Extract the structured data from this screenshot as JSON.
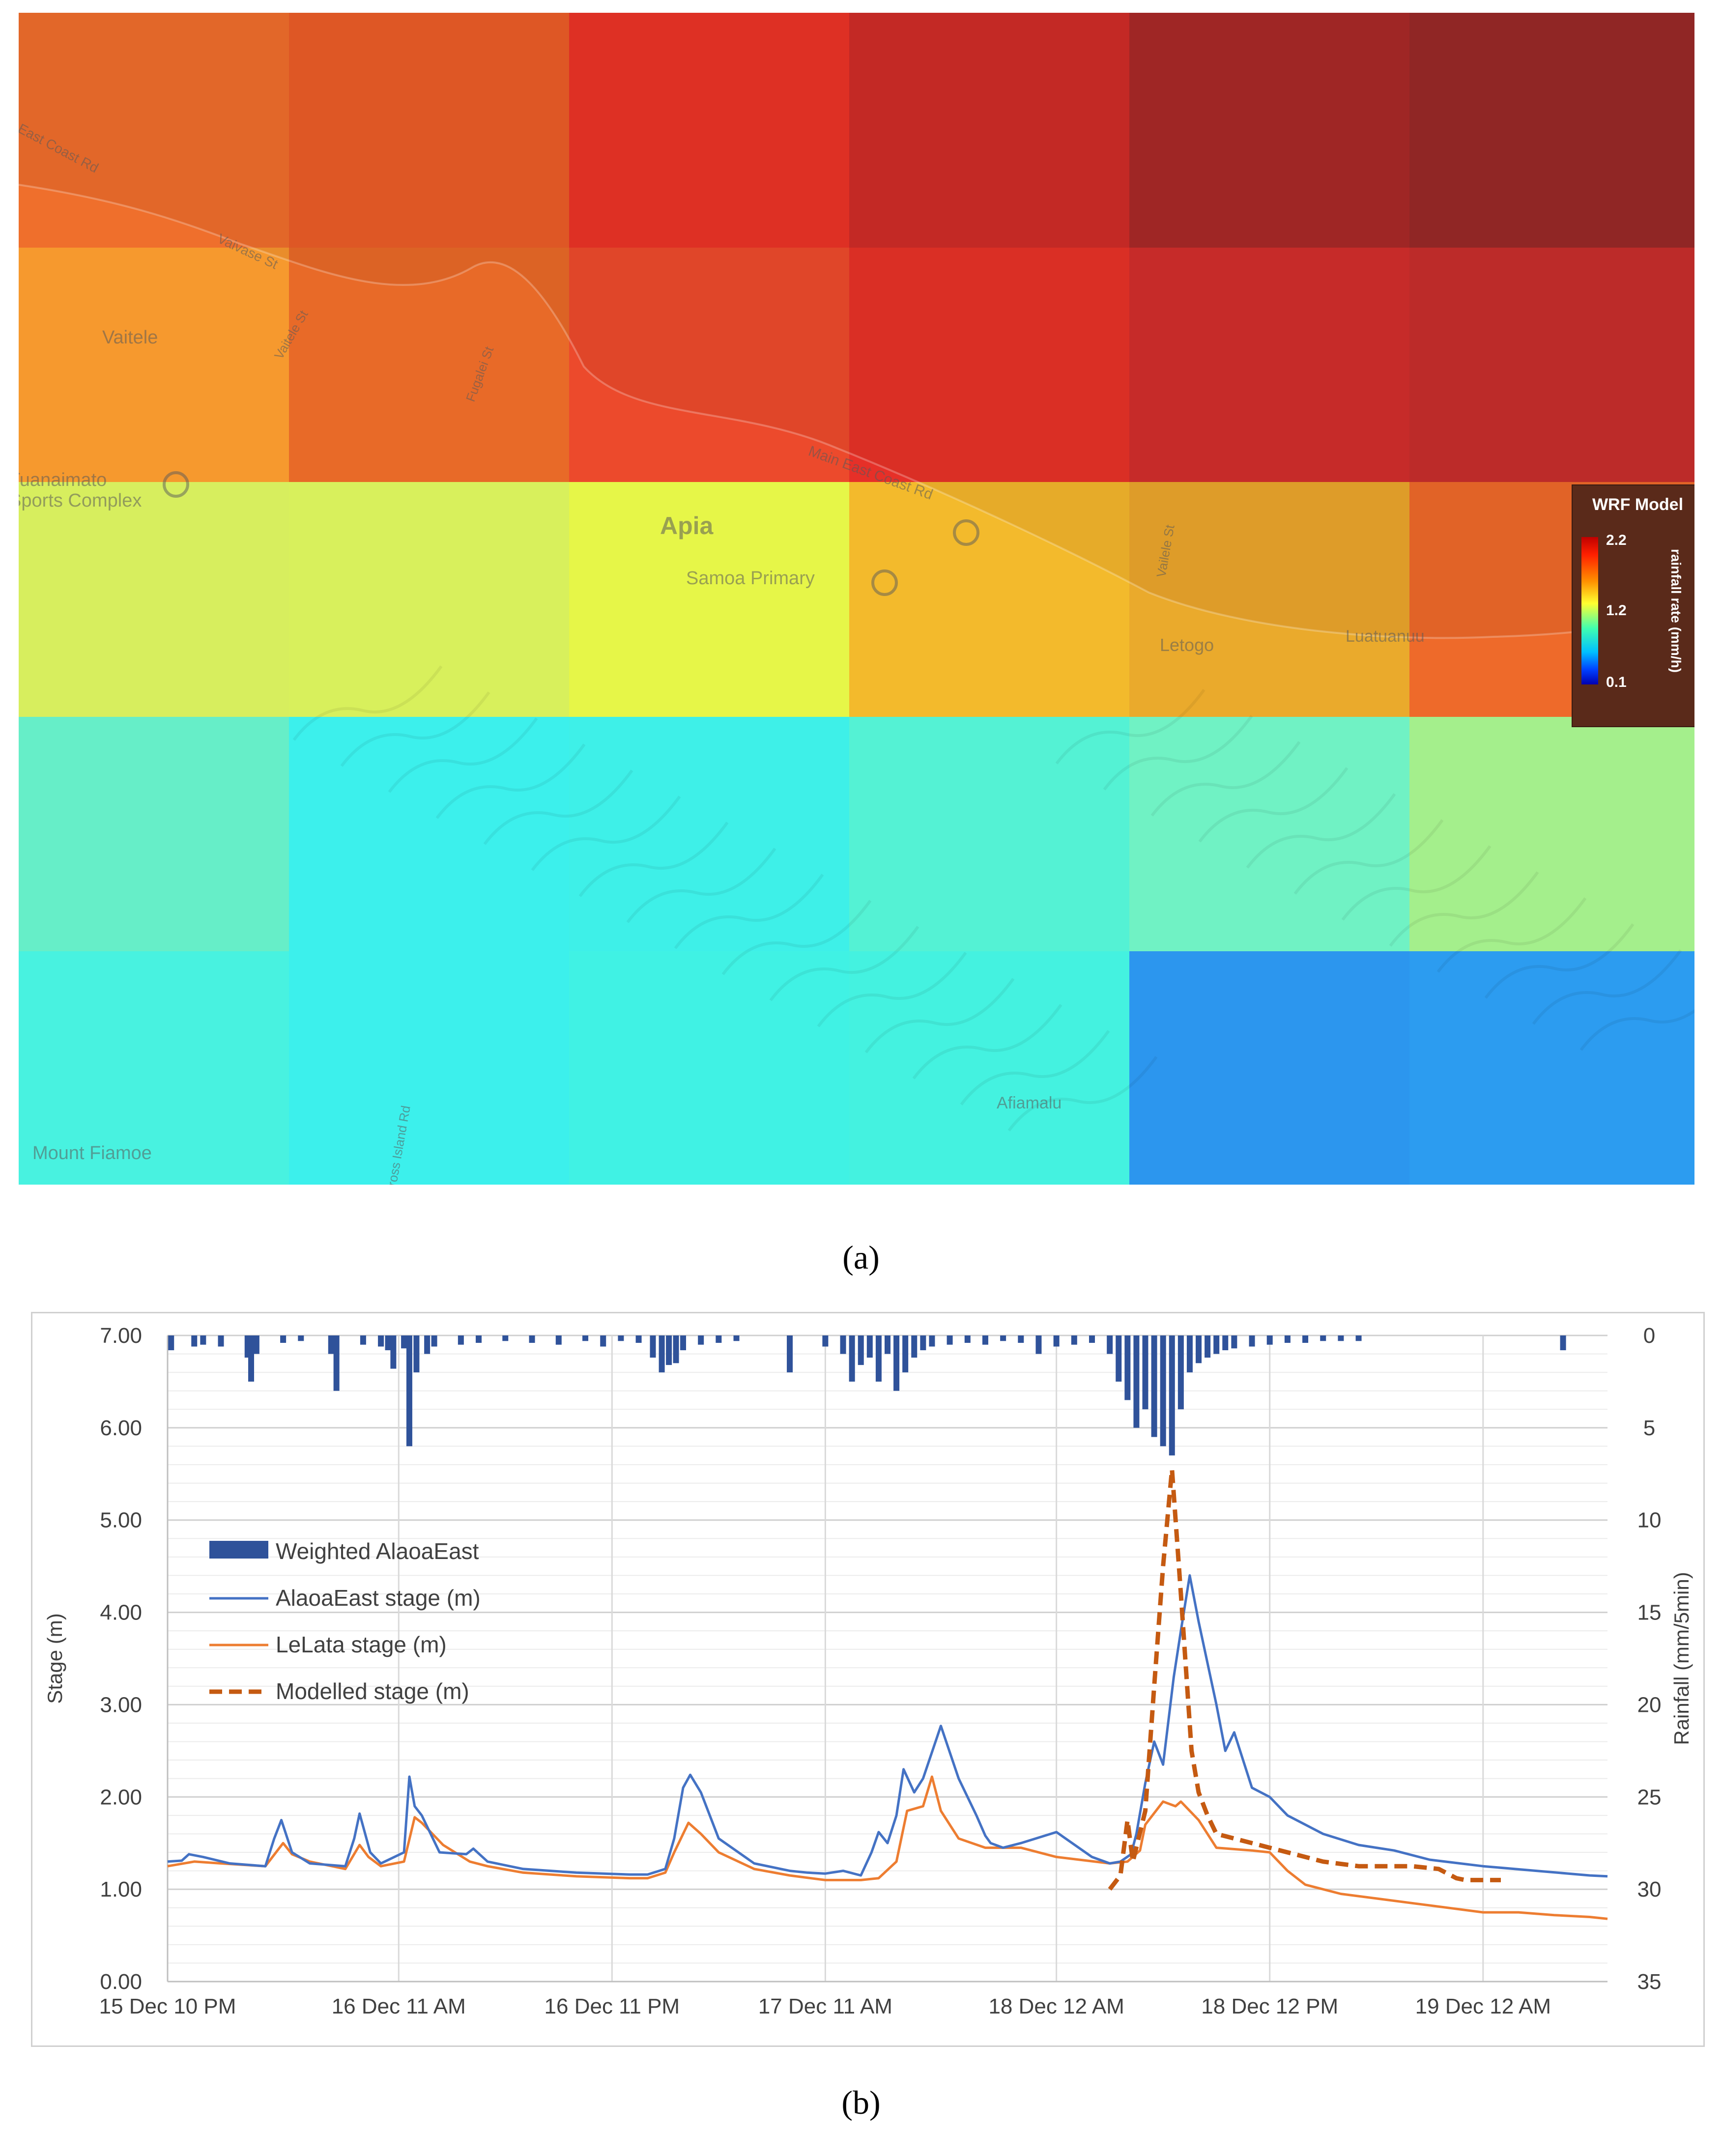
{
  "panel_a": {
    "caption": "(a)",
    "place_labels": [
      "Vaitele",
      "Apia",
      "Samoa Primary",
      "Letogo",
      "Luatuanuu",
      "Afiamalu",
      "Mount Fiamoe",
      "Main East Coast Rd",
      "Vaivase St",
      "Fugalei St",
      "Vailele St",
      "Vaitele St",
      "Cross Island Rd",
      "Tuanaimato Sports Complex",
      "East Coast Rd"
    ],
    "legend": {
      "title": "WRF Model",
      "unit": "rainfall rate (mm/h)",
      "max": "2.2",
      "mid": "1.2",
      "min": "0.1"
    },
    "grid_colors": [
      [
        "#ef6f2c",
        "#ea5d28",
        "#ea3226",
        "#cc2a28",
        "#a42628",
        "#942628"
      ],
      [
        "#f6992e",
        "#e86a28",
        "#ec4a2c",
        "#e63028",
        "#d02c2c",
        "#c42c2c"
      ],
      [
        "#d7ee5e",
        "#d8f05c",
        "#e6f648",
        "#f3ba2c",
        "#eaaa2c",
        "#ee6a2a"
      ],
      [
        "#66eec8",
        "#3cf0ec",
        "#3ef0e8",
        "#54f2d4",
        "#70f2c4",
        "#a4ef8c"
      ],
      [
        "#48f2e0",
        "#3cf0ec",
        "#40f2e4",
        "#44f2e0",
        "#2c96ee",
        "#2c9cf0"
      ]
    ]
  },
  "panel_b": {
    "caption": "(b)",
    "legend": [
      "Weighted AlaoaEast",
      "AlaoaEast stage (m)",
      "LeLata stage (m)",
      "Modelled stage (m)"
    ]
  },
  "colors": {
    "rain": "#2f529a",
    "alaoa": "#4472c4",
    "lelata": "#ed7d31",
    "modelled": "#c55a11",
    "grid": "#d9d9d9"
  },
  "chart_data": {
    "type": "line",
    "title": "",
    "xlabel": "",
    "ylabel": "Stage (m)",
    "y2label": "Rainfall (mm/5min)",
    "ylim": [
      0,
      7
    ],
    "y2lim": [
      35,
      0
    ],
    "y2_inverted": true,
    "xlim": [
      0,
      81
    ],
    "x_unit": "hours after 15 Dec 10 PM",
    "xticks": [
      {
        "x": 0,
        "label": "15 Dec 10 PM"
      },
      {
        "x": 13,
        "label": "16 Dec 11 AM"
      },
      {
        "x": 25,
        "label": "16 Dec 11 PM"
      },
      {
        "x": 37,
        "label": "17 Dec 11 AM"
      },
      {
        "x": 50,
        "label": "18 Dec 12 AM"
      },
      {
        "x": 62,
        "label": "18 Dec 12 PM"
      },
      {
        "x": 74,
        "label": "19 Dec 12 AM"
      }
    ],
    "yticks": [
      "0.00",
      "1.00",
      "2.00",
      "3.00",
      "4.00",
      "5.00",
      "6.00",
      "7.00"
    ],
    "y2ticks": [
      "0",
      "5",
      "10",
      "15",
      "20",
      "25",
      "30",
      "35"
    ],
    "legend_position": "upper-left",
    "grid": true,
    "series": [
      {
        "name": "AlaoaEast stage (m)",
        "axis": "left",
        "x": [
          0,
          0.8,
          1.2,
          2,
          3.5,
          5.5,
          6,
          6.4,
          7,
          8,
          10,
          10.5,
          10.8,
          11.4,
          12,
          13.3,
          13.6,
          13.9,
          14.3,
          15.3,
          16.8,
          17.2,
          18,
          20,
          23,
          26,
          27,
          28,
          28.5,
          29,
          29.4,
          30,
          31,
          33,
          35,
          36,
          37,
          38,
          39,
          39.6,
          40,
          40.5,
          41,
          41.4,
          42,
          42.5,
          43.5,
          44.5,
          45.5,
          46,
          46.3,
          47,
          48,
          50,
          52,
          53,
          53.6,
          54.2,
          54.5,
          55,
          55.5,
          56,
          56.6,
          57,
          57.5,
          58,
          59,
          59.5,
          60,
          61,
          62,
          63,
          65,
          67,
          69,
          71,
          74,
          77,
          80,
          81
        ],
        "y": [
          1.3,
          1.31,
          1.38,
          1.35,
          1.28,
          1.25,
          1.55,
          1.75,
          1.4,
          1.28,
          1.25,
          1.55,
          1.82,
          1.4,
          1.28,
          1.4,
          2.22,
          1.9,
          1.8,
          1.4,
          1.38,
          1.44,
          1.3,
          1.22,
          1.18,
          1.16,
          1.16,
          1.22,
          1.55,
          2.1,
          2.24,
          2.05,
          1.55,
          1.28,
          1.2,
          1.18,
          1.17,
          1.2,
          1.15,
          1.4,
          1.62,
          1.5,
          1.8,
          2.3,
          2.05,
          2.2,
          2.77,
          2.2,
          1.8,
          1.58,
          1.5,
          1.45,
          1.5,
          1.62,
          1.35,
          1.28,
          1.3,
          1.38,
          1.6,
          2.15,
          2.6,
          2.35,
          3.3,
          3.8,
          4.4,
          3.9,
          3.0,
          2.5,
          2.7,
          2.1,
          2.0,
          1.8,
          1.6,
          1.48,
          1.42,
          1.32,
          1.25,
          1.2,
          1.15,
          1.14
        ]
      },
      {
        "name": "LeLata stage (m)",
        "axis": "left",
        "x": [
          0,
          1.5,
          3,
          5.5,
          6.5,
          7,
          8,
          10,
          10.8,
          11.3,
          12,
          13.3,
          13.9,
          14.3,
          15.5,
          17,
          18,
          20,
          23,
          26,
          27,
          28,
          28.5,
          29.3,
          30,
          31,
          33,
          35,
          37,
          39,
          40,
          41,
          41.6,
          42.5,
          43,
          43.5,
          44.5,
          46,
          48,
          50,
          53,
          54,
          54.7,
          55,
          56,
          56.7,
          57,
          58,
          59,
          61,
          62,
          63,
          64,
          66,
          68,
          70,
          72,
          74,
          76,
          78,
          80,
          81
        ],
        "y": [
          1.25,
          1.3,
          1.28,
          1.25,
          1.5,
          1.38,
          1.3,
          1.22,
          1.48,
          1.35,
          1.25,
          1.3,
          1.78,
          1.72,
          1.48,
          1.3,
          1.25,
          1.18,
          1.14,
          1.12,
          1.12,
          1.18,
          1.4,
          1.72,
          1.6,
          1.4,
          1.22,
          1.15,
          1.1,
          1.1,
          1.12,
          1.3,
          1.85,
          1.9,
          2.22,
          1.85,
          1.55,
          1.45,
          1.45,
          1.35,
          1.28,
          1.3,
          1.42,
          1.7,
          1.95,
          1.9,
          1.95,
          1.75,
          1.45,
          1.42,
          1.4,
          1.2,
          1.05,
          0.95,
          0.9,
          0.85,
          0.8,
          0.75,
          0.75,
          0.72,
          0.7,
          0.68
        ]
      },
      {
        "name": "Modelled stage (m)",
        "axis": "left",
        "x": [
          53,
          53.6,
          54,
          54.3,
          55,
          55.5,
          56,
          56.5,
          57,
          57.6,
          58,
          58.5,
          59,
          60,
          61,
          62,
          63,
          65,
          67,
          70,
          71.5,
          72.5,
          73,
          74,
          75
        ],
        "y": [
          1.0,
          1.15,
          1.75,
          1.3,
          1.85,
          3.2,
          4.5,
          5.55,
          4.2,
          2.5,
          2.05,
          1.8,
          1.6,
          1.55,
          1.5,
          1.45,
          1.4,
          1.3,
          1.25,
          1.25,
          1.22,
          1.12,
          1.1,
          1.1,
          1.1
        ]
      },
      {
        "name": "Weighted AlaoaEast",
        "axis": "right",
        "type": "bar",
        "x": [
          0.2,
          1.5,
          2.0,
          3.0,
          4.5,
          4.7,
          5.0,
          6.5,
          7.5,
          9.2,
          9.5,
          11,
          12.0,
          12.4,
          12.7,
          13.3,
          13.6,
          14.0,
          14.6,
          15.0,
          16.5,
          17.5,
          19.0,
          20.5,
          22.0,
          23.5,
          24.5,
          25.5,
          26.5,
          27.3,
          27.8,
          28.2,
          28.6,
          29.0,
          30.0,
          31.0,
          32.0,
          35.0,
          37.0,
          38.0,
          38.5,
          39.0,
          39.5,
          40.0,
          40.5,
          41.0,
          41.5,
          42.0,
          42.5,
          43.0,
          44.0,
          45.0,
          46.0,
          47.0,
          48.0,
          49.0,
          50.0,
          51.0,
          52.0,
          53.0,
          53.5,
          54.0,
          54.5,
          55.0,
          55.5,
          56.0,
          56.5,
          57.0,
          57.5,
          58.0,
          58.5,
          59.0,
          59.5,
          60.0,
          61.0,
          62.0,
          63.0,
          64.0,
          65.0,
          66.0,
          67.0,
          78.5
        ],
        "y": [
          0.8,
          0.6,
          0.5,
          0.6,
          1.2,
          2.5,
          1.0,
          0.4,
          0.3,
          1.0,
          3.0,
          0.5,
          0.6,
          0.8,
          1.8,
          0.7,
          6.0,
          2.0,
          1.0,
          0.6,
          0.5,
          0.4,
          0.3,
          0.4,
          0.5,
          0.3,
          0.6,
          0.3,
          0.4,
          1.2,
          2.0,
          1.6,
          1.5,
          0.8,
          0.5,
          0.4,
          0.3,
          2.0,
          0.6,
          1.0,
          2.5,
          1.6,
          1.2,
          2.5,
          1.0,
          3.0,
          2.0,
          1.2,
          0.8,
          0.6,
          0.5,
          0.4,
          0.5,
          0.3,
          0.4,
          1.0,
          0.6,
          0.5,
          0.4,
          1.0,
          2.5,
          3.5,
          5.0,
          4.0,
          5.5,
          6.0,
          6.5,
          4.0,
          2.0,
          1.5,
          1.2,
          1.0,
          0.8,
          0.7,
          0.6,
          0.5,
          0.4,
          0.4,
          0.3,
          0.3,
          0.3,
          0.8
        ]
      }
    ]
  }
}
